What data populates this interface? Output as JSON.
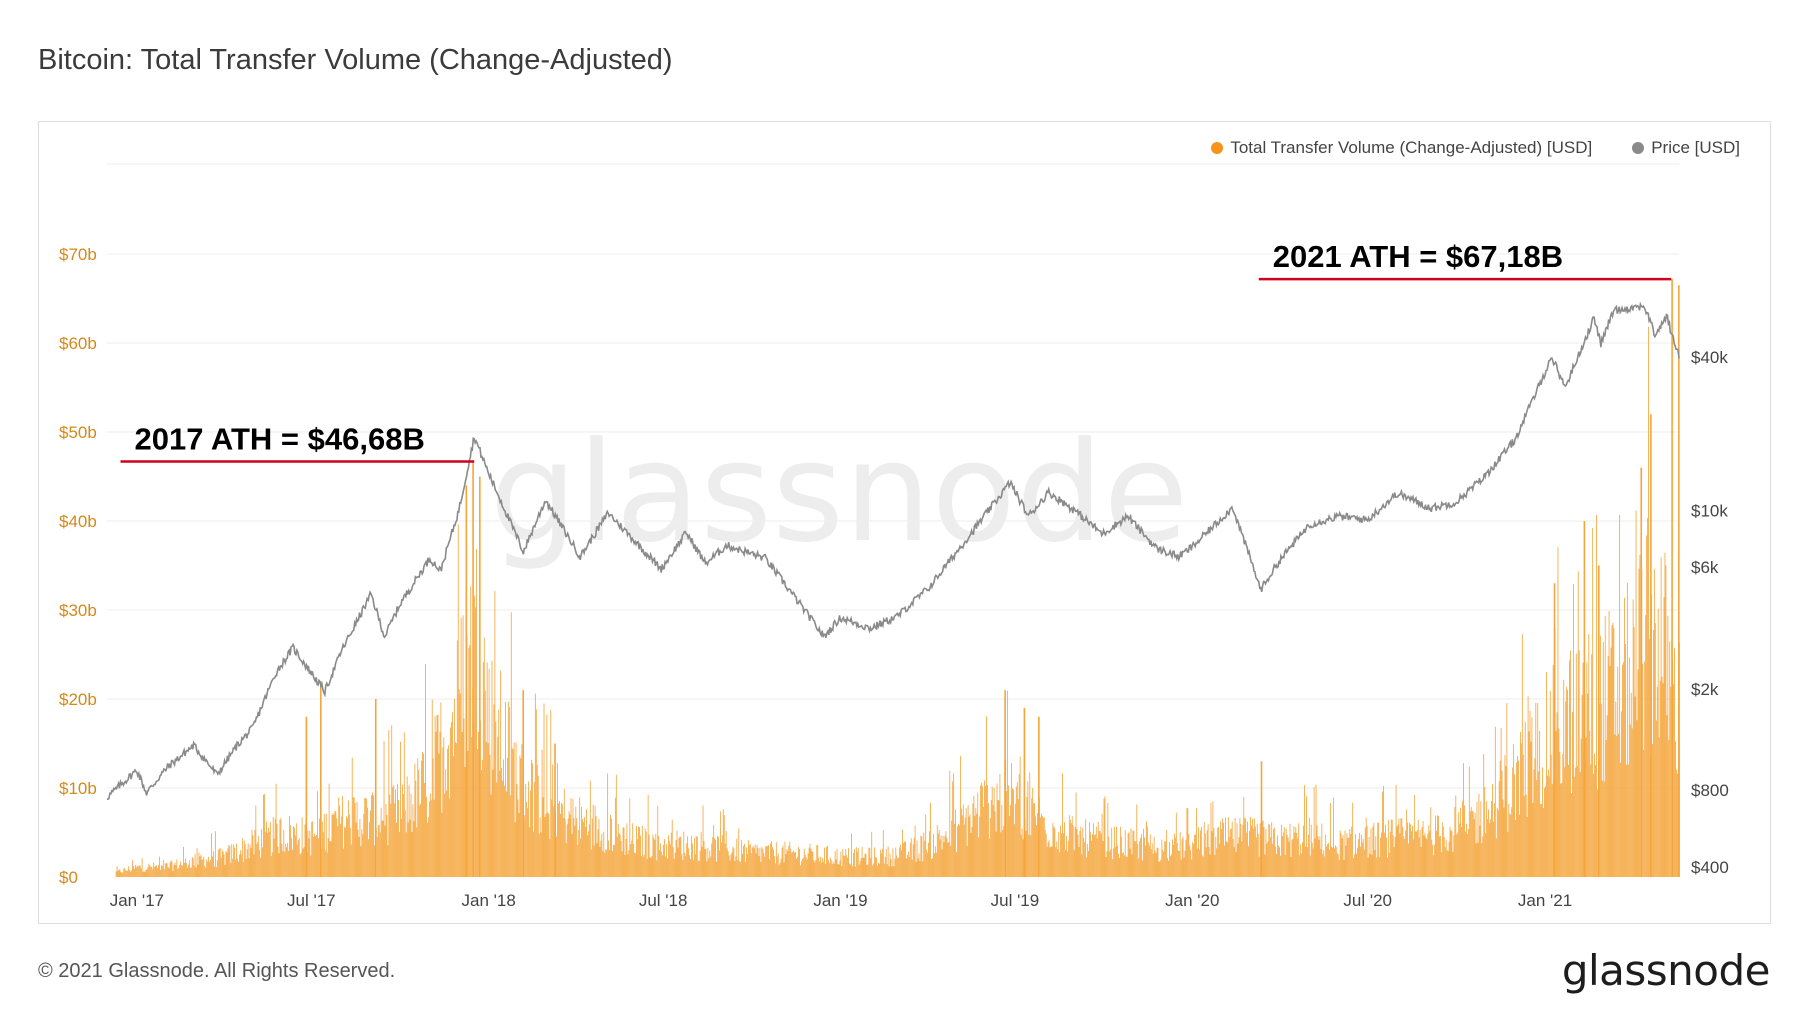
{
  "header": {
    "title": "Bitcoin: Total Transfer Volume (Change-Adjusted)"
  },
  "footer": {
    "copyright": "© 2021 Glassnode. All Rights Reserved.",
    "brand": "glassnode"
  },
  "watermark": "glassnode",
  "colors": {
    "volume": "#f7931a",
    "volume_bar": "#f5a53a",
    "price": "#8a8a8a",
    "ath_line": "#d0021b",
    "left_axis_text": "#d4891b",
    "right_axis_text": "#444444",
    "grid": "#eeeeee",
    "watermark": "#ededed"
  },
  "chart_data": {
    "type": "bar",
    "title": "Bitcoin: Total Transfer Volume (Change-Adjusted)",
    "x_range": [
      "2016-12-01",
      "2021-05-20"
    ],
    "x_ticks": [
      {
        "date": "2017-01-01",
        "label": "Jan '17"
      },
      {
        "date": "2017-07-01",
        "label": "Jul '17"
      },
      {
        "date": "2018-01-01",
        "label": "Jan '18"
      },
      {
        "date": "2018-07-01",
        "label": "Jul '18"
      },
      {
        "date": "2019-01-01",
        "label": "Jan '19"
      },
      {
        "date": "2019-07-01",
        "label": "Jul '19"
      },
      {
        "date": "2020-01-01",
        "label": "Jan '20"
      },
      {
        "date": "2020-07-01",
        "label": "Jul '20"
      },
      {
        "date": "2021-01-01",
        "label": "Jan '21"
      }
    ],
    "left_axis": {
      "unit": "USD (billions)",
      "ylim": [
        0,
        80
      ],
      "ticks": [
        {
          "value": 0,
          "label": "$0"
        },
        {
          "value": 10,
          "label": "$10b"
        },
        {
          "value": 20,
          "label": "$20b"
        },
        {
          "value": 30,
          "label": "$30b"
        },
        {
          "value": 40,
          "label": "$40b"
        },
        {
          "value": 50,
          "label": "$50b"
        },
        {
          "value": 60,
          "label": "$60b"
        },
        {
          "value": 70,
          "label": "$70b"
        }
      ]
    },
    "right_axis": {
      "scale": "log",
      "unit": "USD",
      "ticks": [
        {
          "value": 400,
          "label": "$400"
        },
        {
          "value": 800,
          "label": "$800"
        },
        {
          "value": 2000,
          "label": "$2k"
        },
        {
          "value": 6000,
          "label": "$6k"
        },
        {
          "value": 10000,
          "label": "$10k"
        },
        {
          "value": 40000,
          "label": "$40k"
        }
      ]
    },
    "grid": true,
    "legend_position": "top-right",
    "series": [
      {
        "name": "Total Transfer Volume (Change-Adjusted) [USD]",
        "type": "bar",
        "axis": "left",
        "points": [
          [
            "2016-12-10",
            0.6
          ],
          [
            "2017-01-01",
            1.2
          ],
          [
            "2017-02-01",
            1.3
          ],
          [
            "2017-03-01",
            2.0
          ],
          [
            "2017-04-01",
            2.5
          ],
          [
            "2017-05-01",
            4.0
          ],
          [
            "2017-06-01",
            5.5
          ],
          [
            "2017-07-01",
            5.0
          ],
          [
            "2017-08-01",
            7.0
          ],
          [
            "2017-09-01",
            7.5
          ],
          [
            "2017-10-01",
            8.0
          ],
          [
            "2017-11-01",
            12.0
          ],
          [
            "2017-12-01",
            22.0
          ],
          [
            "2017-12-20",
            30.0
          ],
          [
            "2018-01-01",
            20.0
          ],
          [
            "2018-01-15",
            17.0
          ],
          [
            "2018-02-01",
            12.0
          ],
          [
            "2018-03-01",
            9.0
          ],
          [
            "2018-04-01",
            7.0
          ],
          [
            "2018-05-01",
            6.0
          ],
          [
            "2018-06-01",
            4.5
          ],
          [
            "2018-07-01",
            4.0
          ],
          [
            "2018-08-01",
            4.0
          ],
          [
            "2018-09-01",
            3.5
          ],
          [
            "2018-10-01",
            3.0
          ],
          [
            "2018-11-01",
            3.0
          ],
          [
            "2018-12-01",
            2.8
          ],
          [
            "2019-01-01",
            2.5
          ],
          [
            "2019-02-01",
            2.5
          ],
          [
            "2019-03-01",
            2.7
          ],
          [
            "2019-04-01",
            4.0
          ],
          [
            "2019-05-01",
            6.0
          ],
          [
            "2019-06-01",
            9.0
          ],
          [
            "2019-06-25",
            10.0
          ],
          [
            "2019-07-15",
            8.5
          ],
          [
            "2019-08-01",
            6.5
          ],
          [
            "2019-09-01",
            5.0
          ],
          [
            "2019-10-01",
            4.5
          ],
          [
            "2019-11-01",
            4.0
          ],
          [
            "2019-12-01",
            3.5
          ],
          [
            "2020-01-01",
            4.0
          ],
          [
            "2020-02-01",
            5.0
          ],
          [
            "2020-03-01",
            5.0
          ],
          [
            "2020-04-01",
            4.5
          ],
          [
            "2020-05-01",
            5.0
          ],
          [
            "2020-06-01",
            4.0
          ],
          [
            "2020-07-01",
            4.5
          ],
          [
            "2020-08-01",
            5.0
          ],
          [
            "2020-09-01",
            5.0
          ],
          [
            "2020-10-01",
            6.0
          ],
          [
            "2020-11-01",
            8.0
          ],
          [
            "2020-12-01",
            12.0
          ],
          [
            "2021-01-01",
            17.0
          ],
          [
            "2021-02-01",
            20.0
          ],
          [
            "2021-03-01",
            22.0
          ],
          [
            "2021-04-01",
            25.0
          ],
          [
            "2021-04-15",
            30.0
          ],
          [
            "2021-05-01",
            30.0
          ],
          [
            "2021-05-15",
            22.0
          ]
        ],
        "spikes": [
          [
            "2017-06-25",
            18.0
          ],
          [
            "2017-07-10",
            22.0
          ],
          [
            "2017-09-05",
            20.0
          ],
          [
            "2017-12-08",
            44.0
          ],
          [
            "2017-12-15",
            46.68
          ],
          [
            "2017-12-22",
            45.0
          ],
          [
            "2018-02-05",
            21.0
          ],
          [
            "2018-03-10",
            15.0
          ],
          [
            "2019-06-20",
            21.0
          ],
          [
            "2019-07-10",
            19.0
          ],
          [
            "2019-07-25",
            18.0
          ],
          [
            "2020-03-12",
            13.0
          ],
          [
            "2021-01-10",
            33.0
          ],
          [
            "2021-02-10",
            40.0
          ],
          [
            "2021-02-25",
            35.0
          ],
          [
            "2021-04-10",
            46.0
          ],
          [
            "2021-04-20",
            52.0
          ],
          [
            "2021-05-12",
            67.18
          ],
          [
            "2021-05-19",
            66.5
          ]
        ]
      },
      {
        "name": "Price [USD]",
        "type": "line",
        "axis": "right",
        "points": [
          [
            "2016-12-01",
            750
          ],
          [
            "2017-01-01",
            960
          ],
          [
            "2017-01-11",
            780
          ],
          [
            "2017-02-01",
            980
          ],
          [
            "2017-03-01",
            1200
          ],
          [
            "2017-03-25",
            920
          ],
          [
            "2017-04-15",
            1200
          ],
          [
            "2017-05-01",
            1400
          ],
          [
            "2017-05-25",
            2300
          ],
          [
            "2017-06-12",
            2900
          ],
          [
            "2017-07-15",
            1950
          ],
          [
            "2017-08-01",
            2800
          ],
          [
            "2017-09-01",
            4700
          ],
          [
            "2017-09-15",
            3200
          ],
          [
            "2017-10-01",
            4300
          ],
          [
            "2017-11-01",
            6500
          ],
          [
            "2017-11-12",
            5800
          ],
          [
            "2017-12-01",
            10000
          ],
          [
            "2017-12-17",
            19500
          ],
          [
            "2018-01-01",
            14000
          ],
          [
            "2018-02-06",
            6900
          ],
          [
            "2018-03-01",
            11000
          ],
          [
            "2018-04-06",
            6600
          ],
          [
            "2018-05-05",
            9800
          ],
          [
            "2018-06-29",
            5900
          ],
          [
            "2018-07-25",
            8200
          ],
          [
            "2018-08-14",
            6200
          ],
          [
            "2018-09-05",
            7300
          ],
          [
            "2018-10-15",
            6500
          ],
          [
            "2018-11-20",
            4300
          ],
          [
            "2018-12-15",
            3200
          ],
          [
            "2019-01-01",
            3800
          ],
          [
            "2019-02-01",
            3450
          ],
          [
            "2019-03-01",
            3850
          ],
          [
            "2019-04-03",
            5000
          ],
          [
            "2019-05-15",
            8000
          ],
          [
            "2019-06-26",
            12900
          ],
          [
            "2019-07-15",
            9500
          ],
          [
            "2019-08-05",
            11800
          ],
          [
            "2019-09-01",
            10000
          ],
          [
            "2019-09-30",
            8100
          ],
          [
            "2019-10-26",
            9500
          ],
          [
            "2019-11-25",
            7100
          ],
          [
            "2019-12-18",
            6600
          ],
          [
            "2020-01-01",
            7200
          ],
          [
            "2020-02-12",
            10300
          ],
          [
            "2020-03-12",
            4900
          ],
          [
            "2020-04-01",
            6400
          ],
          [
            "2020-05-01",
            8800
          ],
          [
            "2020-06-01",
            9500
          ],
          [
            "2020-07-01",
            9200
          ],
          [
            "2020-08-01",
            11700
          ],
          [
            "2020-09-05",
            10200
          ],
          [
            "2020-10-01",
            10800
          ],
          [
            "2020-11-01",
            13800
          ],
          [
            "2020-12-01",
            19000
          ],
          [
            "2021-01-08",
            40000
          ],
          [
            "2021-01-22",
            30500
          ],
          [
            "2021-02-21",
            57000
          ],
          [
            "2021-02-28",
            45000
          ],
          [
            "2021-03-13",
            61000
          ],
          [
            "2021-04-14",
            63500
          ],
          [
            "2021-04-25",
            49000
          ],
          [
            "2021-05-08",
            58000
          ],
          [
            "2021-05-12",
            49000
          ],
          [
            "2021-05-19",
            42000
          ],
          [
            "2021-05-20",
            40500
          ]
        ]
      }
    ],
    "annotations": [
      {
        "text": "2017 ATH = $46,68B",
        "value": 46.68,
        "x_start": "2016-12-15",
        "x_end": "2017-12-17"
      },
      {
        "text": "2021 ATH = $67,18B",
        "value": 67.18,
        "x_start": "2020-03-10",
        "x_end": "2021-05-12"
      }
    ]
  }
}
